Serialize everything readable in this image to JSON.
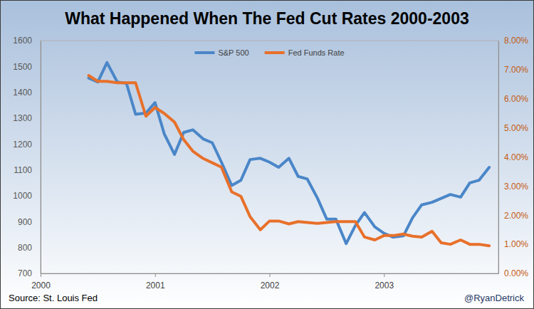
{
  "chart_data": {
    "type": "line",
    "title": "What Happened When The Fed Cut Rates 2000-2003",
    "annotations": [
      "Source: St. Louis Fed",
      "@RyanDetrick"
    ],
    "legend": "top",
    "grid": false,
    "x": [
      2000.42,
      2000.5,
      2000.58,
      2000.67,
      2000.75,
      2000.83,
      2000.92,
      2001,
      2001.08,
      2001.17,
      2001.25,
      2001.33,
      2001.42,
      2001.5,
      2001.58,
      2001.67,
      2001.75,
      2001.83,
      2001.92,
      2002,
      2002.08,
      2002.17,
      2002.25,
      2002.33,
      2002.42,
      2002.5,
      2002.58,
      2002.67,
      2002.75,
      2002.83,
      2002.92,
      2003,
      2003.08,
      2003.17,
      2003.25,
      2003.33,
      2003.42,
      2003.5,
      2003.58,
      2003.67,
      2003.75,
      2003.83,
      2003.92
    ],
    "xlim": [
      2000,
      2004
    ],
    "xticks": [
      2000,
      2001,
      2002,
      2003
    ],
    "ylim": [
      700,
      1600
    ],
    "yticks": [
      700,
      800,
      900,
      1000,
      1100,
      1200,
      1300,
      1400,
      1500,
      1600
    ],
    "y2lim": [
      0,
      8
    ],
    "y2ticks": [
      {
        "value": 0,
        "label": "0.00%"
      },
      {
        "value": 1,
        "label": "1.00%"
      },
      {
        "value": 2,
        "label": "2.00%"
      },
      {
        "value": 3,
        "label": "3.00%"
      },
      {
        "value": 4,
        "label": "4.00%"
      },
      {
        "value": 5,
        "label": "5.00%"
      },
      {
        "value": 6,
        "label": "6.00%"
      },
      {
        "value": 7,
        "label": "7.00%"
      },
      {
        "value": 8,
        "label": "8.00%"
      }
    ],
    "series": [
      {
        "name": "S&P 500",
        "color": "#4a86c8",
        "values": [
          1455,
          1440,
          1515,
          1440,
          1435,
          1315,
          1320,
          1360,
          1240,
          1160,
          1245,
          1255,
          1220,
          1205,
          1130,
          1040,
          1060,
          1140,
          1145,
          1130,
          1110,
          1145,
          1075,
          1065,
          990,
          910,
          910,
          815,
          885,
          935,
          880,
          855,
          840,
          845,
          915,
          965,
          975,
          990,
          1005,
          995,
          1050,
          1060,
          1110
        ]
      },
      {
        "name": "Fed Funds Rate",
        "color": "#e8702a",
        "axis": "y2",
        "values": [
          6.8,
          6.6,
          6.6,
          6.55,
          6.55,
          6.55,
          5.4,
          5.7,
          5.5,
          5.2,
          4.6,
          4.2,
          3.95,
          3.8,
          3.65,
          2.8,
          2.65,
          1.95,
          1.5,
          1.8,
          1.8,
          1.7,
          1.78,
          1.75,
          1.72,
          1.75,
          1.78,
          1.78,
          1.78,
          1.25,
          1.15,
          1.3,
          1.3,
          1.35,
          1.28,
          1.25,
          1.45,
          1.05,
          1.0,
          1.15,
          1.0,
          1.0,
          0.95
        ]
      }
    ]
  }
}
